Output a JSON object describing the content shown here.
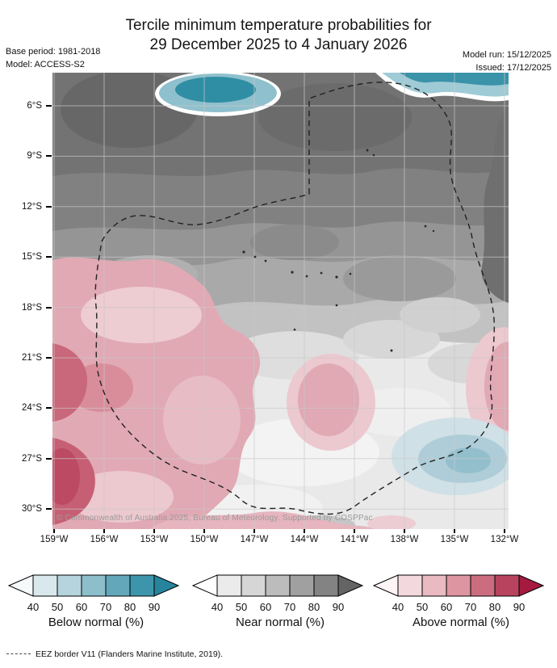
{
  "header": {
    "title_line1": "Tercile minimum temperature probabilities for",
    "title_line2": "29 December 2025 to 4 January 2026",
    "base_period_label": "Base period: 1981-2018",
    "model_label": "Model: ACCESS-S2",
    "model_run_label": "Model run: 15/12/2025",
    "issued_label": "Issued: 17/12/2025"
  },
  "map": {
    "lat_labels": [
      "6°S",
      "9°S",
      "12°S",
      "15°S",
      "18°S",
      "21°S",
      "24°S",
      "27°S",
      "30°S"
    ],
    "lon_labels": [
      "159°W",
      "156°W",
      "153°W",
      "150°W",
      "147°W",
      "144°W",
      "141°W",
      "138°W",
      "135°W",
      "132°W"
    ],
    "copyright": "© Commonwealth of Australia 2025, Bureau of Meteorology.  Supported by COSPPac",
    "colors": {
      "near_normal_dark": "#737373",
      "near_normal_mid": "#a9a9a9",
      "near_normal_light": "#e4e4e4",
      "below_normal_teal": "#2f8ea4",
      "below_normal_light": "#aecdd8",
      "above_normal_dark": "#bb4a62",
      "above_normal_mid": "#e1a9b3",
      "above_normal_light": "#edccd2"
    }
  },
  "legend": {
    "tick_values": [
      "40",
      "50",
      "60",
      "70",
      "80",
      "90"
    ],
    "scales": [
      {
        "name": "below_normal",
        "label": "Below normal (%)",
        "colors": [
          "#f6fafb",
          "#d9e8ec",
          "#b5d4dd",
          "#8dbfcb",
          "#63a8ba",
          "#3d95ab",
          "#26859d"
        ]
      },
      {
        "name": "near_normal",
        "label": "Near normal (%)",
        "colors": [
          "#ffffff",
          "#ebebeb",
          "#d6d6d6",
          "#bcbcbc",
          "#a0a0a0",
          "#838383",
          "#646464"
        ]
      },
      {
        "name": "above_normal",
        "label": "Above normal (%)",
        "colors": [
          "#fdf4f5",
          "#f3d9dd",
          "#e9bac1",
          "#dc95a1",
          "#cb6c7f",
          "#b8435e",
          "#a41b3f"
        ]
      }
    ]
  },
  "footer": {
    "eez_note": "EEZ border V11 (Flanders Marine Institute, 2019)."
  }
}
